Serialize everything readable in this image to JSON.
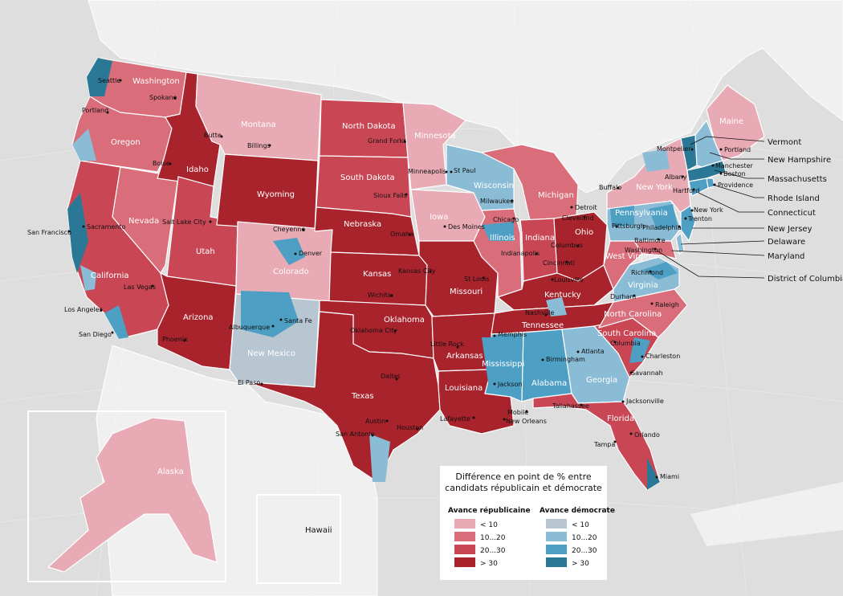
{
  "colors": {
    "rep": [
      "#e8aab4",
      "#d96d7a",
      "#c94755",
      "#a8232c"
    ],
    "dem": [
      "#b8c6d2",
      "#8bbcd6",
      "#4e9fc4",
      "#2b7896"
    ],
    "land": "#f0f0f0",
    "ocean": "#dedede",
    "border": "#ffffff"
  },
  "states": [
    {
      "name": "Washington",
      "level": "r1"
    },
    {
      "name": "Oregon",
      "level": "r1"
    },
    {
      "name": "California",
      "level": "r2"
    },
    {
      "name": "Nevada",
      "level": "r1"
    },
    {
      "name": "Idaho",
      "level": "r3"
    },
    {
      "name": "Utah",
      "level": "r2"
    },
    {
      "name": "Arizona",
      "level": "r3"
    },
    {
      "name": "Montana",
      "level": "r0"
    },
    {
      "name": "Wyoming",
      "level": "r3"
    },
    {
      "name": "Colorado",
      "level": "r0"
    },
    {
      "name": "New Mexico",
      "level": "d0"
    },
    {
      "name": "North Dakota",
      "level": "r2"
    },
    {
      "name": "South Dakota",
      "level": "r2"
    },
    {
      "name": "Nebraska",
      "level": "r3"
    },
    {
      "name": "Kansas",
      "level": "r3"
    },
    {
      "name": "Oklahoma",
      "level": "r3"
    },
    {
      "name": "Texas",
      "level": "r3"
    },
    {
      "name": "Minnesota",
      "level": "r0"
    },
    {
      "name": "Iowa",
      "level": "r0"
    },
    {
      "name": "Missouri",
      "level": "r3"
    },
    {
      "name": "Arkansas",
      "level": "r3"
    },
    {
      "name": "Louisiana",
      "level": "r3"
    },
    {
      "name": "Wisconsin",
      "level": "d1"
    },
    {
      "name": "Illinois",
      "level": "r1"
    },
    {
      "name": "Michigan",
      "level": "r1"
    },
    {
      "name": "Indiana",
      "level": "r2"
    },
    {
      "name": "Ohio",
      "level": "r3"
    },
    {
      "name": "Kentucky",
      "level": "r3"
    },
    {
      "name": "Tennessee",
      "level": "r3"
    },
    {
      "name": "Mississippi",
      "level": "d2"
    },
    {
      "name": "Alabama",
      "level": "d2"
    },
    {
      "name": "Georgia",
      "level": "d1"
    },
    {
      "name": "Florida",
      "level": "r2"
    },
    {
      "name": "South Carolina",
      "level": "r2"
    },
    {
      "name": "North Carolina",
      "level": "r1"
    },
    {
      "name": "Virginia",
      "level": "d1"
    },
    {
      "name": "West Virginia",
      "level": "r1"
    },
    {
      "name": "Pennsylvania",
      "level": "d1"
    },
    {
      "name": "New York",
      "level": "r0"
    },
    {
      "name": "Maine",
      "level": "r0"
    },
    {
      "name": "Alaska",
      "level": "r0"
    },
    {
      "name": "Hawaii",
      "level": "d3"
    }
  ],
  "cities": [
    "Seattle",
    "Spokane",
    "Portland",
    "Boise",
    "Butte",
    "Billings",
    "Grand Forks",
    "Sioux Falls",
    "Minneapolis",
    "St Paul",
    "San Francisco",
    "Sacramento",
    "Salt Lake City",
    "Cheyenne",
    "Denver",
    "Omaha",
    "Des Moines",
    "Kansas City",
    "Wichita",
    "Las Vegas",
    "Los Angeles",
    "San Diego",
    "Phoenix",
    "Albuquerque",
    "Santa Fe",
    "El Paso",
    "Oklahoma City",
    "Dallas",
    "Austin",
    "San Antonio",
    "Houston",
    "Little Rock",
    "Memphis",
    "Jackson",
    "Lafayette",
    "New Orleans",
    "Mobile",
    "Birmingham",
    "Atlanta",
    "Tallahassee",
    "Jacksonville",
    "Orlando",
    "Tampa",
    "Miami",
    "Savannah",
    "Charleston",
    "Columbia",
    "Raleigh",
    "Durham",
    "Richmond",
    "Nashville",
    "Louisville",
    "St Louis",
    "Chicago",
    "Milwaukee",
    "Detroit",
    "Cleveland",
    "Columbus",
    "Cincinnati",
    "Indianapolis",
    "Pittsburgh",
    "Philadelphia",
    "Baltimore",
    "Washington",
    "Buffalo",
    "Albany",
    "Hartford",
    "Providence",
    "Boston",
    "Manchester",
    "Montpelier",
    "Trenton",
    "New York"
  ],
  "northeast_labels": [
    "Vermont",
    "New Hampshire",
    "Massachusetts",
    "Rhode Island",
    "Connecticut",
    "New Jersey",
    "Delaware",
    "Maryland",
    "District of Columbia"
  ],
  "legend": {
    "title_line1": "Différence en point de % entre",
    "title_line2": "candidats républicain et démocrate",
    "rep_header": "Avance républicaine",
    "dem_header": "Avance démocrate",
    "items": [
      "< 10",
      "10...20",
      "20...30",
      "> 30"
    ]
  }
}
